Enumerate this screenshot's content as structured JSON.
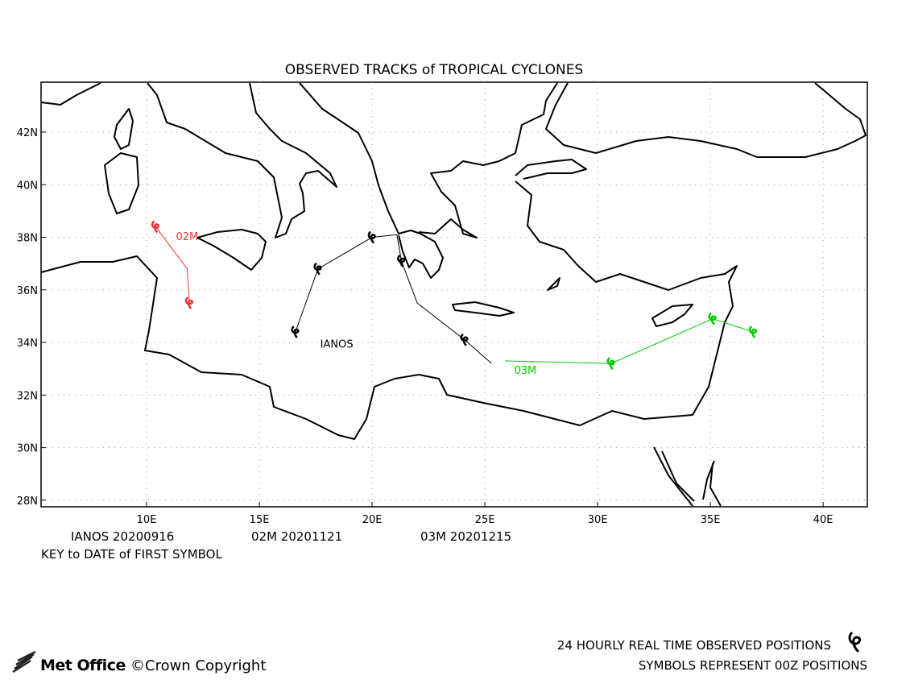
{
  "map": {
    "title": "OBSERVED TRACKS of TROPICAL CYCLONES",
    "xlim": [
      5.32,
      41.96
    ],
    "ylim": [
      27.75,
      43.9
    ],
    "xticks": [
      {
        "value": 10,
        "label": "10E"
      },
      {
        "value": 15,
        "label": "15E"
      },
      {
        "value": 20,
        "label": "20E"
      },
      {
        "value": 25,
        "label": "25E"
      },
      {
        "value": 30,
        "label": "30E"
      },
      {
        "value": 35,
        "label": "35E"
      },
      {
        "value": 40,
        "label": "40E"
      }
    ],
    "yticks": [
      {
        "value": 28,
        "label": "28N"
      },
      {
        "value": 30,
        "label": "30N"
      },
      {
        "value": 32,
        "label": "32N"
      },
      {
        "value": 34,
        "label": "34N"
      },
      {
        "value": 36,
        "label": "36N"
      },
      {
        "value": 38,
        "label": "38N"
      },
      {
        "value": 40,
        "label": "40N"
      },
      {
        "value": 42,
        "label": "42N"
      }
    ],
    "grid": true,
    "tracks": [
      {
        "name": "IANOS",
        "color": "#000000",
        "lon": [
          16.6,
          17.6,
          20.0,
          21.1,
          21.3,
          22.0,
          24.1,
          25.3
        ],
        "lat": [
          34.4,
          36.8,
          38.0,
          38.1,
          37.1,
          35.5,
          34.1,
          33.2
        ],
        "symbols": [
          0,
          1,
          2,
          4,
          6
        ],
        "label_at": [
          17.7,
          33.8
        ]
      },
      {
        "name": "02M",
        "color": "#ee3333",
        "lon": [
          10.4,
          11.8,
          11.9
        ],
        "lat": [
          38.4,
          36.8,
          35.5
        ],
        "symbols": [
          0,
          2
        ],
        "label_at": [
          11.3,
          37.9
        ]
      },
      {
        "name": "03M",
        "color": "#00cc00",
        "lon": [
          25.9,
          30.6,
          35.1,
          36.9
        ],
        "lat": [
          33.3,
          33.2,
          34.9,
          34.4
        ],
        "symbols": [
          1,
          2,
          3
        ],
        "label_at": [
          26.3,
          32.8
        ]
      }
    ],
    "key": [
      "IANOS 20200916",
      "02M 20201121",
      "03M 20201215"
    ],
    "key_title": "KEY to DATE of FIRST SYMBOL",
    "note1": "24 HOURLY REAL TIME OBSERVED POSITIONS",
    "note2": "SYMBOLS REPRESENT 00Z POSITIONS",
    "brand": "Met Office",
    "copyright": "©Crown Copyright"
  }
}
